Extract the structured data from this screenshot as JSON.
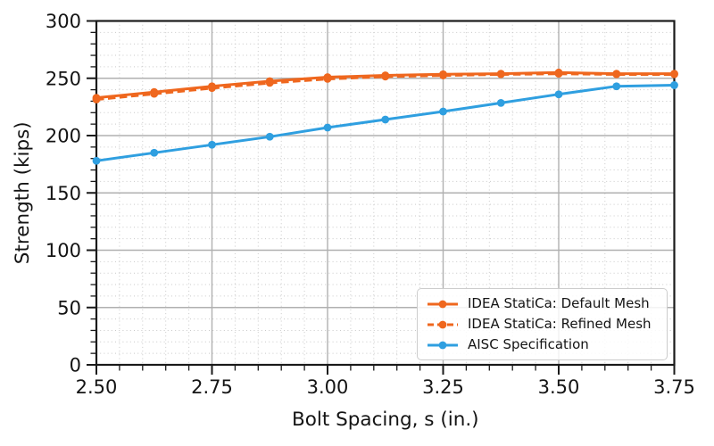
{
  "figure": {
    "background": "#ffffff",
    "spine_color": "#1a1a1a"
  },
  "chart_data": {
    "type": "line",
    "title": "",
    "xlabel": "Bolt Spacing, s (in.)",
    "ylabel": "Strength (kips)",
    "xlim": [
      2.5,
      3.75
    ],
    "ylim": [
      0,
      300
    ],
    "x_major_ticks": [
      2.5,
      2.75,
      3.0,
      3.25,
      3.5,
      3.75
    ],
    "x_tick_labels": [
      "2.50",
      "2.75",
      "3.00",
      "3.25",
      "3.50",
      "3.75"
    ],
    "x_minor_step": 0.05,
    "y_major_ticks": [
      0,
      50,
      100,
      150,
      200,
      250,
      300
    ],
    "y_tick_labels": [
      "0",
      "50",
      "100",
      "150",
      "200",
      "250",
      "300"
    ],
    "y_minor_step": 10,
    "grid": {
      "major_on": true,
      "minor_on": true,
      "major_color": "#b0b0b0",
      "minor_color": "#c9c9c9",
      "minor_style": "dotted"
    },
    "legend_position": "lower right",
    "x": [
      2.5,
      2.625,
      2.75,
      2.875,
      3.0,
      3.125,
      3.25,
      3.375,
      3.5,
      3.625,
      3.75
    ],
    "series": [
      {
        "name": "IDEA StatiCa: Default Mesh",
        "slug": "idea-statica-default-mesh",
        "color": "#ef671e",
        "line_style": "solid",
        "marker": "circle",
        "values": [
          233,
          238,
          243,
          247.5,
          251,
          252.5,
          253.5,
          254,
          255,
          254,
          254
        ]
      },
      {
        "name": "IDEA StatiCa: Refined Mesh",
        "slug": "idea-statica-refined-mesh",
        "color": "#ef671e",
        "line_style": "dashed",
        "marker": "circle",
        "values": [
          231.5,
          236.5,
          241.5,
          246,
          249.5,
          251.5,
          252.5,
          253.5,
          254,
          253.5,
          253.5
        ]
      },
      {
        "name": "AISC Specification",
        "slug": "aisc-specification",
        "color": "#2f9fe0",
        "line_style": "solid",
        "marker": "circle",
        "values": [
          178,
          185,
          192,
          199,
          207,
          214,
          221,
          228.5,
          236,
          243,
          244
        ]
      }
    ]
  }
}
